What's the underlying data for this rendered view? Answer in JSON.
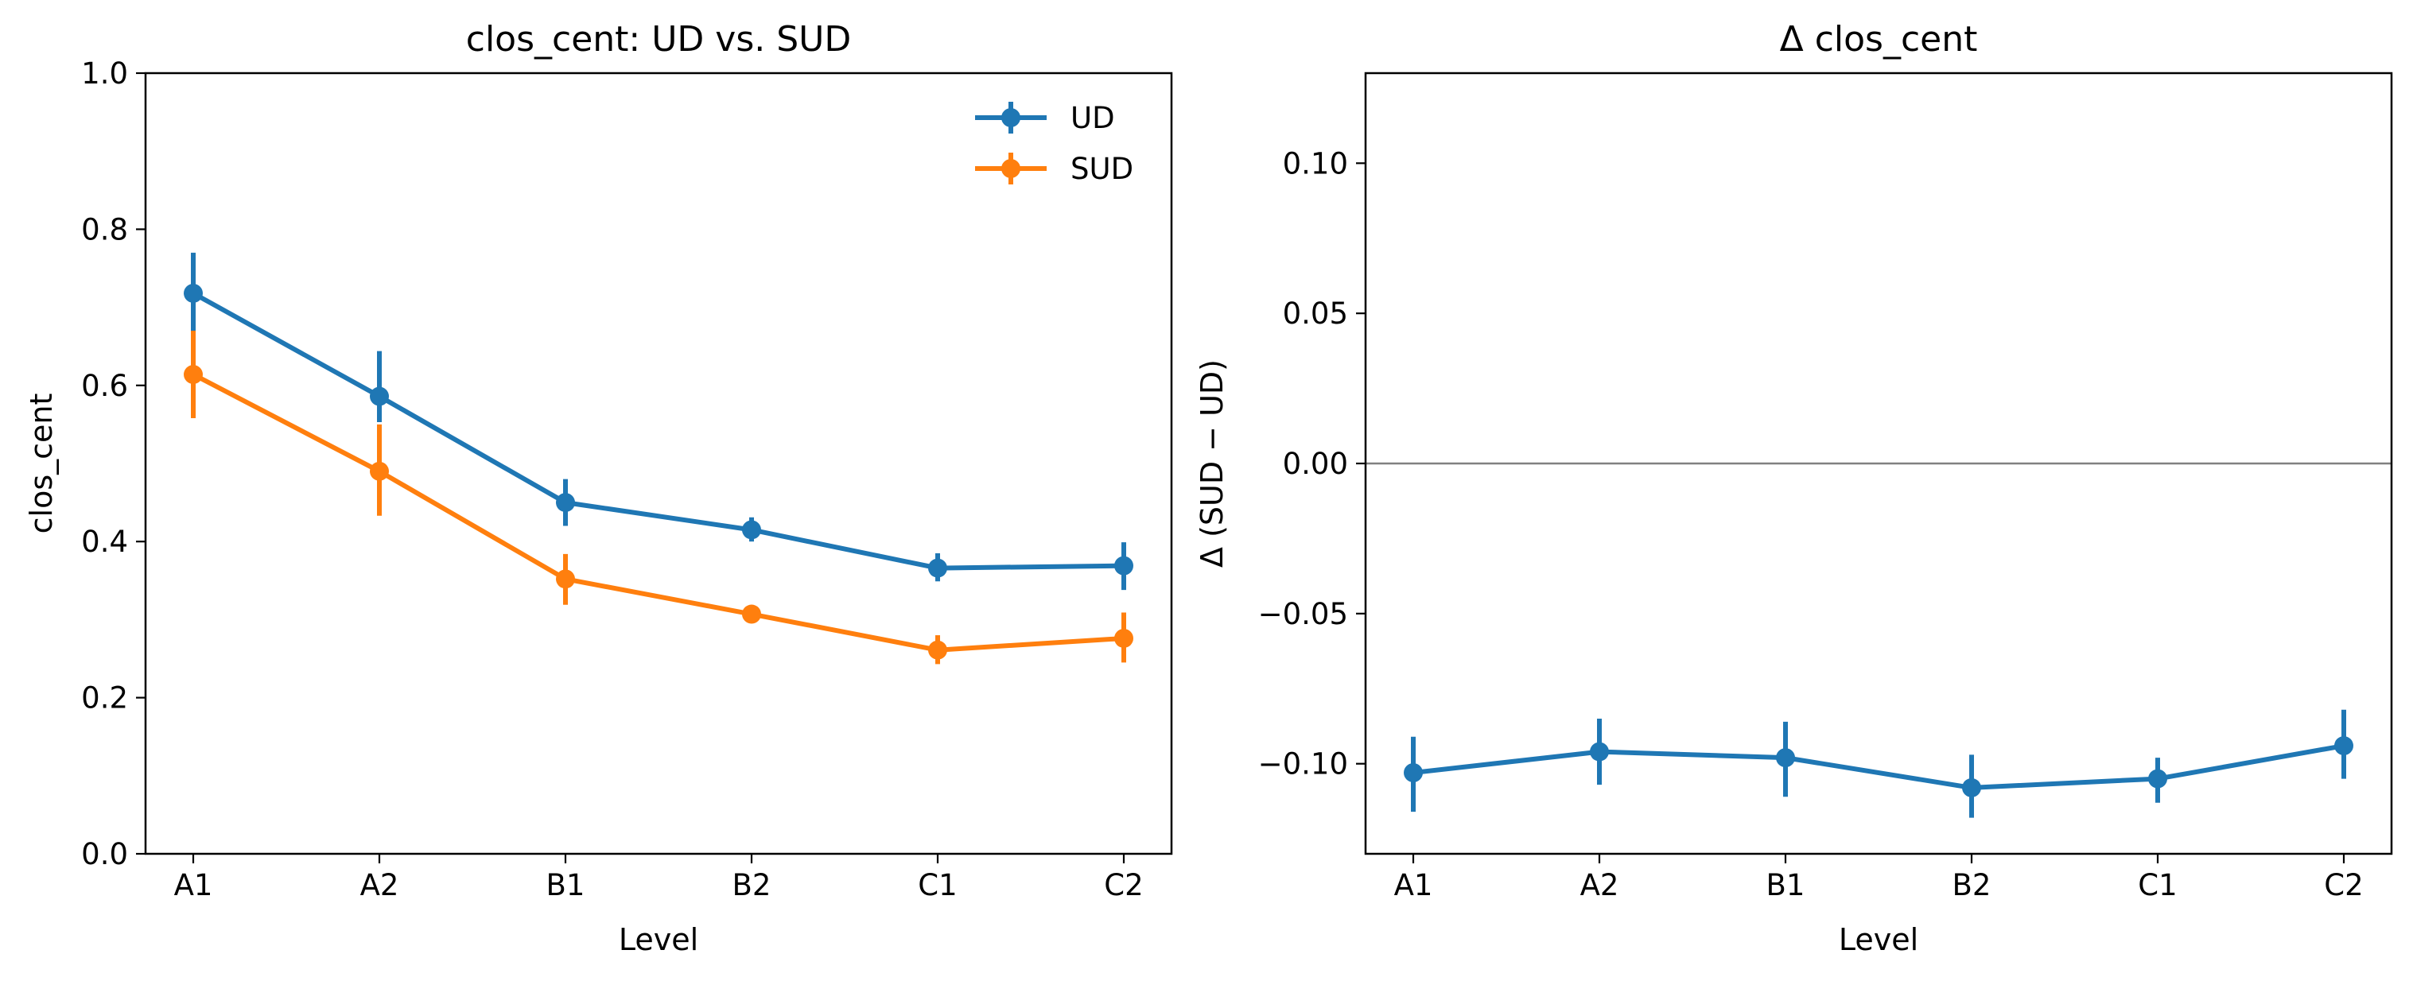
{
  "chart_data": [
    {
      "type": "line",
      "title": "clos_cent: UD vs. SUD",
      "xlabel": "Level",
      "ylabel": "clos_cent",
      "categories": [
        "A1",
        "A2",
        "B1",
        "B2",
        "C1",
        "C2"
      ],
      "ylim": [
        0.0,
        1.0
      ],
      "yticks": [
        0.0,
        0.2,
        0.4,
        0.6,
        0.8,
        1.0
      ],
      "ytick_labels": [
        "0.0",
        "0.2",
        "0.4",
        "0.6",
        "0.8",
        "1.0"
      ],
      "legend": "top-right",
      "grid": false,
      "series": [
        {
          "name": "UD",
          "color": "#1f77b4",
          "values": [
            0.718,
            0.586,
            0.45,
            0.415,
            0.366,
            0.369
          ],
          "err_low": [
            0.668,
            0.553,
            0.42,
            0.4,
            0.349,
            0.338
          ],
          "err_high": [
            0.77,
            0.644,
            0.48,
            0.431,
            0.385,
            0.399
          ]
        },
        {
          "name": "SUD",
          "color": "#ff7f0e",
          "values": [
            0.614,
            0.49,
            0.352,
            0.307,
            0.261,
            0.276
          ],
          "err_low": [
            0.558,
            0.433,
            0.319,
            0.296,
            0.243,
            0.245
          ],
          "err_high": [
            0.67,
            0.55,
            0.384,
            0.318,
            0.28,
            0.309
          ]
        }
      ]
    },
    {
      "type": "line",
      "title": "Δ clos_cent",
      "xlabel": "Level",
      "ylabel": "Δ (SUD − UD)",
      "categories": [
        "A1",
        "A2",
        "B1",
        "B2",
        "C1",
        "C2"
      ],
      "ylim": [
        -0.13,
        0.13
      ],
      "yticks": [
        -0.1,
        -0.05,
        0.0,
        0.05,
        0.1
      ],
      "ytick_labels": [
        "−0.10",
        "−0.05",
        "0.00",
        "0.05",
        "0.10"
      ],
      "reference_line": 0.0,
      "reference_color": "#808080",
      "grid": false,
      "series": [
        {
          "color": "#1f77b4",
          "values": [
            -0.103,
            -0.096,
            -0.098,
            -0.108,
            -0.105,
            -0.094
          ],
          "err_low": [
            -0.116,
            -0.107,
            -0.111,
            -0.118,
            -0.113,
            -0.105
          ],
          "err_high": [
            -0.091,
            -0.085,
            -0.086,
            -0.097,
            -0.098,
            -0.082
          ]
        }
      ]
    }
  ]
}
